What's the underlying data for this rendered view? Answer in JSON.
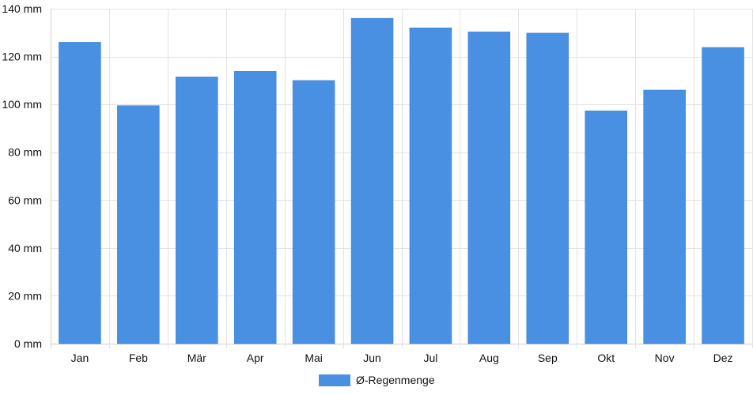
{
  "chart_data": {
    "type": "bar",
    "categories": [
      "Jan",
      "Feb",
      "Mär",
      "Apr",
      "Mai",
      "Jun",
      "Jul",
      "Aug",
      "Sep",
      "Okt",
      "Nov",
      "Dez"
    ],
    "series": [
      {
        "name": "Ø-Regenmenge",
        "values": [
          126,
          99.5,
          111.5,
          113.8,
          110,
          136,
          132,
          130.3,
          129.8,
          97.3,
          106,
          123.8
        ],
        "color": "#4a90e2"
      }
    ],
    "ylim": [
      0,
      140
    ],
    "y_ticks": [
      "0 mm",
      "20 mm",
      "40 mm",
      "60 mm",
      "80 mm",
      "100 mm",
      "120 mm",
      "140 mm"
    ],
    "y_tick_values": [
      0,
      20,
      40,
      60,
      80,
      100,
      120,
      140
    ],
    "grid": true,
    "legend_position": "bottom-center",
    "colors": {
      "grid": "#e3e3e3",
      "axis": "#cfcfcf",
      "text": "#111111"
    }
  }
}
